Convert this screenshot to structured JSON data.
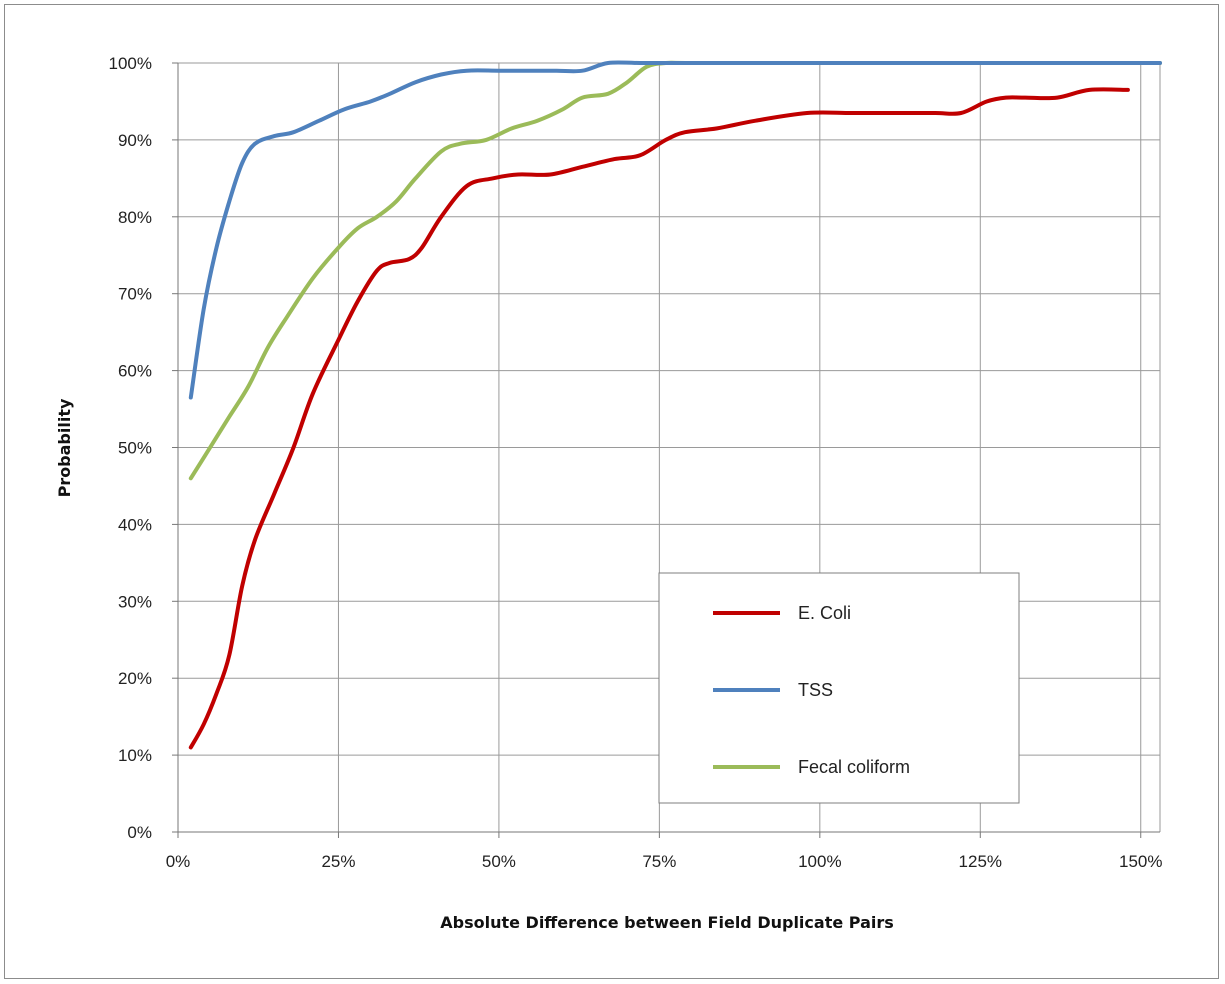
{
  "chart_data": {
    "type": "line",
    "xlabel": "Absolute Difference between Field Duplicate  Pairs",
    "ylabel": "Probability",
    "xlim": [
      0,
      1.53
    ],
    "ylim": [
      0,
      1.0
    ],
    "x_ticks": [
      0,
      0.25,
      0.5,
      0.75,
      1.0,
      1.25,
      1.5
    ],
    "x_tick_labels": [
      "0%",
      "25%",
      "50%",
      "75%",
      "100%",
      "125%",
      "150%"
    ],
    "y_ticks": [
      0,
      0.1,
      0.2,
      0.3,
      0.4,
      0.5,
      0.6,
      0.7,
      0.8,
      0.9,
      1.0
    ],
    "y_tick_labels": [
      "0%",
      "10%",
      "20%",
      "30%",
      "40%",
      "50%",
      "60%",
      "70%",
      "80%",
      "90%",
      "100%"
    ],
    "grid": true,
    "legend_position": "bottom-right",
    "series": [
      {
        "name": "E. Coli",
        "color": "#c00000",
        "points": [
          [
            0.02,
            0.11
          ],
          [
            0.04,
            0.14
          ],
          [
            0.06,
            0.18
          ],
          [
            0.08,
            0.23
          ],
          [
            0.1,
            0.32
          ],
          [
            0.12,
            0.38
          ],
          [
            0.15,
            0.44
          ],
          [
            0.18,
            0.5
          ],
          [
            0.21,
            0.57
          ],
          [
            0.25,
            0.64
          ],
          [
            0.28,
            0.69
          ],
          [
            0.31,
            0.73
          ],
          [
            0.33,
            0.74
          ],
          [
            0.36,
            0.745
          ],
          [
            0.38,
            0.76
          ],
          [
            0.41,
            0.8
          ],
          [
            0.45,
            0.84
          ],
          [
            0.49,
            0.85
          ],
          [
            0.53,
            0.855
          ],
          [
            0.58,
            0.855
          ],
          [
            0.63,
            0.865
          ],
          [
            0.68,
            0.875
          ],
          [
            0.72,
            0.88
          ],
          [
            0.76,
            0.9
          ],
          [
            0.79,
            0.91
          ],
          [
            0.84,
            0.915
          ],
          [
            0.9,
            0.925
          ],
          [
            0.98,
            0.935
          ],
          [
            1.05,
            0.935
          ],
          [
            1.12,
            0.935
          ],
          [
            1.18,
            0.935
          ],
          [
            1.22,
            0.935
          ],
          [
            1.26,
            0.95
          ],
          [
            1.29,
            0.955
          ],
          [
            1.32,
            0.955
          ],
          [
            1.37,
            0.955
          ],
          [
            1.42,
            0.965
          ],
          [
            1.48,
            0.965
          ]
        ]
      },
      {
        "name": "TSS",
        "color": "#4f81bd",
        "points": [
          [
            0.02,
            0.565
          ],
          [
            0.04,
            0.68
          ],
          [
            0.06,
            0.76
          ],
          [
            0.08,
            0.82
          ],
          [
            0.1,
            0.87
          ],
          [
            0.12,
            0.895
          ],
          [
            0.15,
            0.905
          ],
          [
            0.18,
            0.91
          ],
          [
            0.22,
            0.925
          ],
          [
            0.26,
            0.94
          ],
          [
            0.3,
            0.95
          ],
          [
            0.33,
            0.96
          ],
          [
            0.37,
            0.975
          ],
          [
            0.41,
            0.985
          ],
          [
            0.45,
            0.99
          ],
          [
            0.5,
            0.99
          ],
          [
            0.55,
            0.99
          ],
          [
            0.59,
            0.99
          ],
          [
            0.63,
            0.99
          ],
          [
            0.67,
            1.0
          ],
          [
            0.72,
            1.0
          ],
          [
            0.8,
            1.0
          ],
          [
            1.0,
            1.0
          ],
          [
            1.2,
            1.0
          ],
          [
            1.4,
            1.0
          ],
          [
            1.53,
            1.0
          ]
        ]
      },
      {
        "name": "Fecal coliform",
        "color": "#9bbb59",
        "points": [
          [
            0.02,
            0.46
          ],
          [
            0.05,
            0.5
          ],
          [
            0.08,
            0.54
          ],
          [
            0.11,
            0.58
          ],
          [
            0.14,
            0.63
          ],
          [
            0.17,
            0.67
          ],
          [
            0.21,
            0.72
          ],
          [
            0.25,
            0.76
          ],
          [
            0.28,
            0.785
          ],
          [
            0.31,
            0.8
          ],
          [
            0.34,
            0.82
          ],
          [
            0.37,
            0.85
          ],
          [
            0.41,
            0.885
          ],
          [
            0.44,
            0.895
          ],
          [
            0.48,
            0.9
          ],
          [
            0.52,
            0.915
          ],
          [
            0.56,
            0.925
          ],
          [
            0.6,
            0.94
          ],
          [
            0.63,
            0.955
          ],
          [
            0.67,
            0.96
          ],
          [
            0.7,
            0.975
          ],
          [
            0.73,
            0.995
          ],
          [
            0.76,
            1.0
          ],
          [
            0.8,
            1.0
          ],
          [
            1.0,
            1.0
          ],
          [
            1.2,
            1.0
          ],
          [
            1.4,
            1.0
          ],
          [
            1.53,
            1.0
          ]
        ]
      }
    ]
  }
}
